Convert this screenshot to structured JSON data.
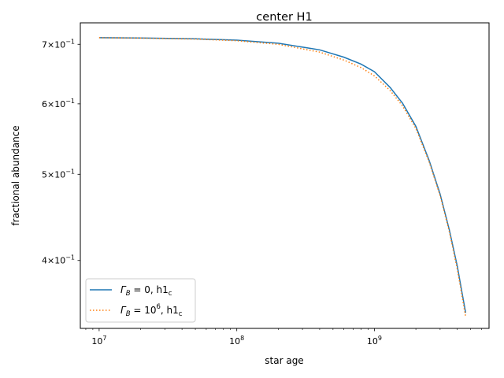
{
  "chart_data": {
    "type": "line",
    "title": "center H1",
    "xlabel": "star age",
    "ylabel": "fractional abundance",
    "xscale": "log",
    "yscale": "log",
    "xlim": [
      7300000.0,
      6800000000.0
    ],
    "ylim": [
      0.3355,
      0.74
    ],
    "x_ticks": [
      {
        "value": 10000000.0,
        "base": "10",
        "exp": "7"
      },
      {
        "value": 100000000.0,
        "base": "10",
        "exp": "8"
      },
      {
        "value": 1000000000.0,
        "base": "10",
        "exp": "9"
      }
    ],
    "y_ticks": [
      {
        "value": 0.7,
        "mant": "7",
        "mult": "×",
        "base": "10",
        "exp": "−1"
      },
      {
        "value": 0.6,
        "mant": "6",
        "mult": "×",
        "base": "10",
        "exp": "−1"
      },
      {
        "value": 0.5,
        "mant": "5",
        "mult": "×",
        "base": "10",
        "exp": "−1"
      },
      {
        "value": 0.4,
        "mant": "4",
        "mult": "×",
        "base": "10",
        "exp": "−1"
      }
    ],
    "series": [
      {
        "name": "Γ_B = 0, h1_c",
        "color": "#1f77b4",
        "style": "solid",
        "x": [
          10000000.0,
          20000000.0,
          50000000.0,
          100000000.0,
          200000000.0,
          400000000.0,
          600000000.0,
          800000000.0,
          1000000000.0,
          1300000000.0,
          1600000000.0,
          2000000000.0,
          2500000000.0,
          3000000000.0,
          3500000000.0,
          4000000000.0,
          4300000000.0,
          4600000000.0
        ],
        "y": [
          0.712,
          0.7115,
          0.71,
          0.7075,
          0.702,
          0.69,
          0.677,
          0.665,
          0.652,
          0.626,
          0.601,
          0.566,
          0.518,
          0.475,
          0.433,
          0.394,
          0.37,
          0.3493
        ]
      },
      {
        "name": "Γ_B = 10^6, h1_c",
        "color": "#ff7f0e",
        "style": "dotted",
        "x": [
          10000000.0,
          20000000.0,
          50000000.0,
          100000000.0,
          200000000.0,
          400000000.0,
          600000000.0,
          800000000.0,
          1000000000.0,
          1300000000.0,
          1600000000.0,
          2000000000.0,
          2500000000.0,
          3000000000.0,
          3500000000.0,
          4000000000.0,
          4300000000.0,
          4600000000.0
        ],
        "y": [
          0.712,
          0.7113,
          0.7095,
          0.7065,
          0.7,
          0.686,
          0.672,
          0.659,
          0.645,
          0.621,
          0.597,
          0.563,
          0.516,
          0.473,
          0.431,
          0.391,
          0.367,
          0.3455
        ]
      }
    ],
    "legend": {
      "placement": "lower-left",
      "entries": [
        {
          "sym": "Γ",
          "sub": "B",
          "eq": " = 0, h1",
          "sub2": "c"
        },
        {
          "sym": "Γ",
          "sub": "B",
          "eq": " = 10",
          "sup": "6",
          "eq2": ", h1",
          "sub2": "c"
        }
      ]
    }
  }
}
